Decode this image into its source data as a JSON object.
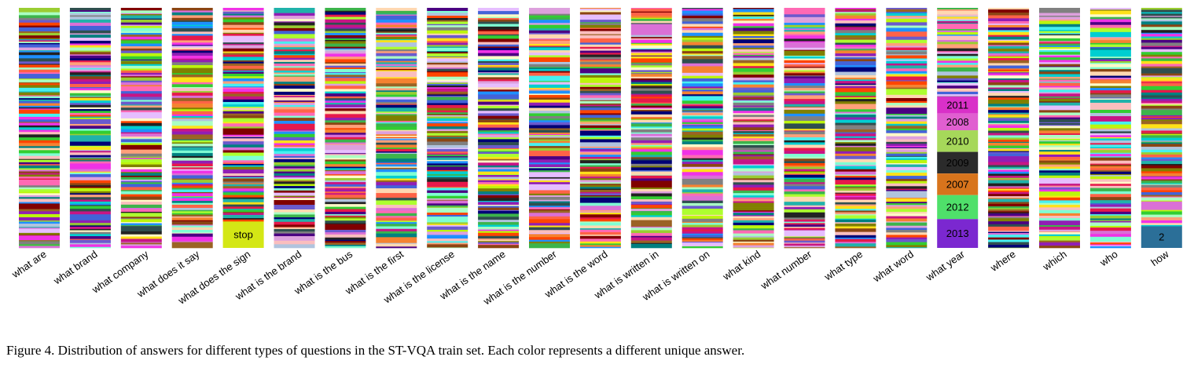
{
  "caption": "Figure 4. Distribution of answers for different types of questions in the ST-VQA train set. Each color represents a different unique answer.",
  "chart_data": {
    "type": "stacked-bar",
    "description_of_encoding": "Each column is a question type; each horizontal band is a unique answer, band height proportional to answer frequency. Most bands are thin and unlabeled; the largest labeled answers are listed.",
    "palette": [
      "#e6194b",
      "#3cb44b",
      "#ffe119",
      "#4363d8",
      "#f58231",
      "#911eb4",
      "#46f0f0",
      "#f032e6",
      "#bcf60c",
      "#fabebe",
      "#008080",
      "#e6beff",
      "#9a6324",
      "#fffac8",
      "#800000",
      "#aaffc3",
      "#808000",
      "#ffd8b1",
      "#000075",
      "#808080",
      "#222222",
      "#ff69b4",
      "#7fffd4",
      "#dda0dd",
      "#6a5acd",
      "#20b2aa",
      "#ff6347",
      "#9acd32",
      "#1e90ff",
      "#c71585",
      "#32cd32",
      "#8b4513",
      "#00ced1",
      "#ffa07a",
      "#4b0082",
      "#adff2f",
      "#da70d6",
      "#2f4f4f",
      "#ff4500",
      "#b0c4de"
    ],
    "columns": [
      {
        "label": "what are",
        "labeled_segments": []
      },
      {
        "label": "what brand",
        "labeled_segments": []
      },
      {
        "label": "what company",
        "labeled_segments": []
      },
      {
        "label": "what does it say",
        "labeled_segments": []
      },
      {
        "label": "what does the sign",
        "labeled_segments": [
          {
            "text": "stop",
            "fraction": 0.11,
            "color": "#d4e715"
          }
        ]
      },
      {
        "label": "what is the brand",
        "labeled_segments": []
      },
      {
        "label": "what is the bus",
        "labeled_segments": []
      },
      {
        "label": "what is the first",
        "labeled_segments": []
      },
      {
        "label": "what is the license",
        "labeled_segments": []
      },
      {
        "label": "what is the name",
        "labeled_segments": []
      },
      {
        "label": "what is the number",
        "labeled_segments": []
      },
      {
        "label": "what is the word",
        "labeled_segments": []
      },
      {
        "label": "what is written in",
        "labeled_segments": []
      },
      {
        "label": "what is written on",
        "labeled_segments": []
      },
      {
        "label": "what kind",
        "labeled_segments": []
      },
      {
        "label": "what number",
        "labeled_segments": []
      },
      {
        "label": "what type",
        "labeled_segments": []
      },
      {
        "label": "what word",
        "labeled_segments": []
      },
      {
        "label": "what year",
        "labeled_segments": [
          {
            "text": "2011",
            "fraction": 0.07,
            "color": "#d930c8"
          },
          {
            "text": "2008",
            "fraction": 0.07,
            "color": "#e05fd0"
          },
          {
            "text": "2010",
            "fraction": 0.09,
            "color": "#a6d85a"
          },
          {
            "text": "2009",
            "fraction": 0.09,
            "color": "#2b2b2b"
          },
          {
            "text": "2007",
            "fraction": 0.09,
            "color": "#d8741c"
          },
          {
            "text": "2012",
            "fraction": 0.1,
            "color": "#4fe06a"
          },
          {
            "text": "2013",
            "fraction": 0.12,
            "color": "#7b28d0"
          }
        ]
      },
      {
        "label": "where",
        "labeled_segments": []
      },
      {
        "label": "which",
        "labeled_segments": []
      },
      {
        "label": "who",
        "labeled_segments": []
      },
      {
        "label": "how",
        "labeled_segments": [
          {
            "text": "2",
            "fraction": 0.09,
            "color": "#2b6f98"
          }
        ]
      }
    ]
  }
}
